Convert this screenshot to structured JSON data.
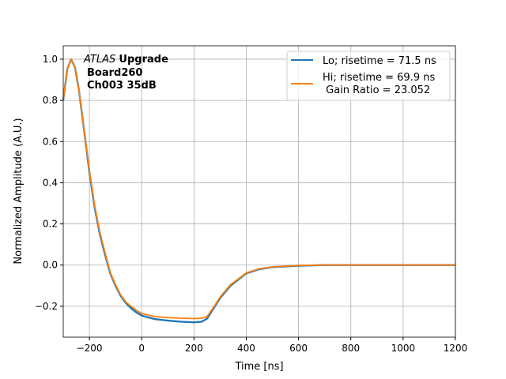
{
  "chart_data": {
    "type": "line",
    "title": "",
    "xlabel": "Time [ns]",
    "ylabel": "Normalized Amplitude (A.U.)",
    "xlim": [
      -300,
      1200
    ],
    "ylim": [
      -0.35,
      1.065
    ],
    "xticks": [
      -200,
      0,
      200,
      400,
      600,
      800,
      1000,
      1200
    ],
    "yticks": [
      -0.2,
      0.0,
      0.2,
      0.4,
      0.6,
      0.8,
      1.0
    ],
    "xtick_labels": [
      "−200",
      "0",
      "200",
      "400",
      "600",
      "800",
      "1000",
      "1200"
    ],
    "ytick_labels": [
      "−0.2",
      "0.0",
      "0.2",
      "0.4",
      "0.6",
      "0.8",
      "1.0"
    ],
    "grid": true,
    "legend_position": "top-right",
    "annotation": {
      "italic": "ATLAS",
      "bold": "Upgrade",
      "line2": "Board260",
      "line3": "Ch003 35dB"
    },
    "series": [
      {
        "name": "Lo; risetime = 71.5 ns",
        "color": "#1f77b4",
        "x": [
          -300,
          -285,
          -270,
          -255,
          -240,
          -220,
          -200,
          -180,
          -160,
          -140,
          -120,
          -100,
          -80,
          -60,
          -40,
          -20,
          0,
          50,
          100,
          150,
          200,
          230,
          250,
          280,
          300,
          340,
          400,
          450,
          500,
          600,
          700,
          1200
        ],
        "y": [
          0.8,
          0.95,
          1.0,
          0.96,
          0.85,
          0.65,
          0.45,
          0.28,
          0.15,
          0.05,
          -0.04,
          -0.1,
          -0.15,
          -0.185,
          -0.21,
          -0.23,
          -0.245,
          -0.262,
          -0.27,
          -0.275,
          -0.278,
          -0.275,
          -0.26,
          -0.2,
          -0.16,
          -0.1,
          -0.04,
          -0.02,
          -0.01,
          -0.003,
          0,
          0
        ]
      },
      {
        "name": "Hi; risetime = 69.9 ns\n Gain Ratio = 23.052",
        "color": "#ff7f0e",
        "x": [
          -300,
          -285,
          -270,
          -255,
          -240,
          -220,
          -200,
          -180,
          -160,
          -140,
          -120,
          -100,
          -80,
          -60,
          -40,
          -20,
          0,
          50,
          100,
          150,
          200,
          230,
          250,
          280,
          300,
          340,
          400,
          450,
          500,
          600,
          700,
          1200
        ],
        "y": [
          0.8,
          0.95,
          1.0,
          0.96,
          0.85,
          0.65,
          0.46,
          0.29,
          0.16,
          0.06,
          -0.035,
          -0.095,
          -0.145,
          -0.18,
          -0.2,
          -0.22,
          -0.235,
          -0.25,
          -0.255,
          -0.258,
          -0.26,
          -0.258,
          -0.25,
          -0.195,
          -0.155,
          -0.095,
          -0.038,
          -0.018,
          -0.009,
          -0.002,
          0,
          0
        ]
      }
    ]
  }
}
